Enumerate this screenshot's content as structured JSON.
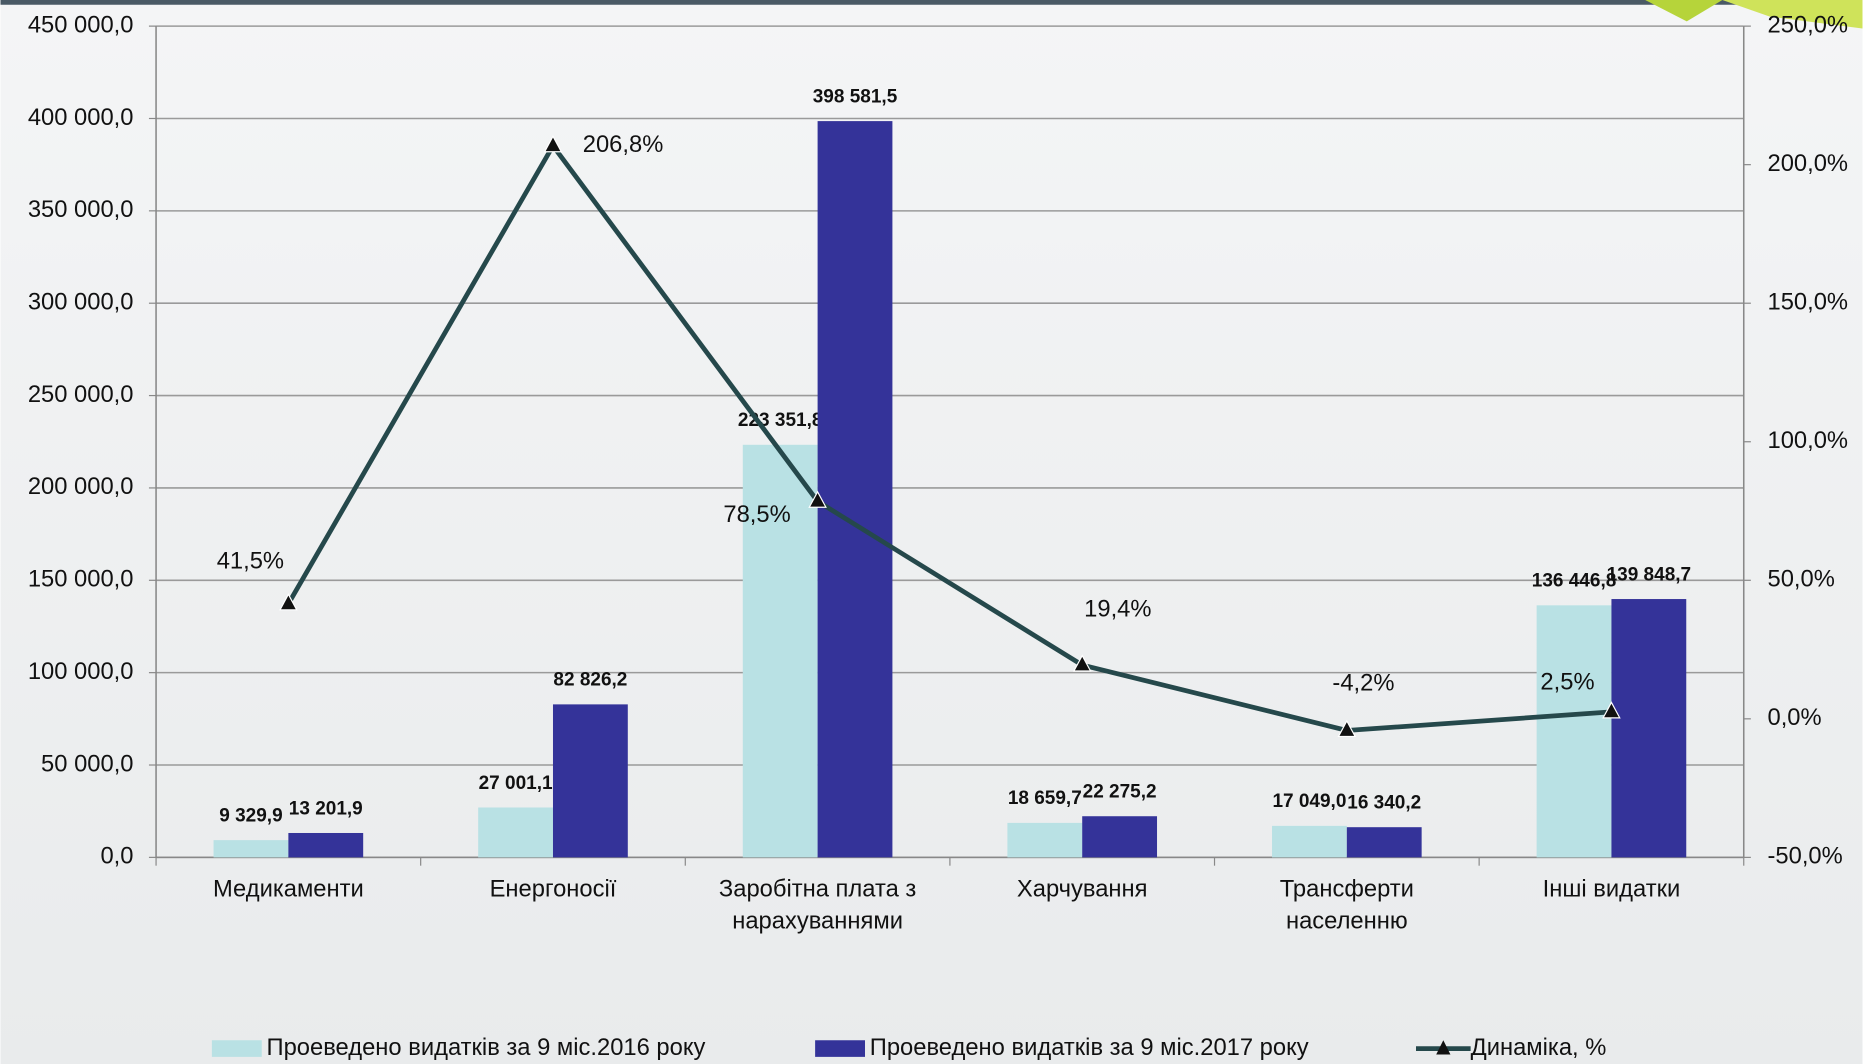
{
  "chart_data": {
    "type": "bar",
    "categories": [
      "Медикаменти",
      "Енергоносії",
      "Заробітна плата з нарахуваннями",
      "Харчування",
      "Трансферти населенню",
      "Інші видатки"
    ],
    "series": [
      {
        "name": "Проеведено видатків за 9 міс.2016 року",
        "color": "#b9e1e4",
        "values": [
          9329.9,
          27001.1,
          223351.8,
          18659.7,
          17049.0,
          136446.8
        ],
        "value_labels": [
          "9 329,9",
          "27 001,1",
          "223 351,8",
          "18 659,7",
          "17 049,0",
          "136 446,8"
        ]
      },
      {
        "name": "Проеведено видатків за 9 міс.2017 року",
        "color": "#343399",
        "values": [
          13201.9,
          82826.2,
          398581.5,
          22275.2,
          16340.2,
          139848.7
        ],
        "value_labels": [
          "13 201,9",
          "82 826,2",
          "398 581,5",
          "22 275,2",
          "16 340,2",
          "139 848,7"
        ]
      },
      {
        "name": "Динаміка, %",
        "color": "#25484b",
        "type": "line",
        "axis": "y2",
        "values": [
          41.5,
          206.8,
          78.5,
          19.4,
          -4.2,
          2.5
        ],
        "value_labels": [
          "41,5%",
          "206,8%",
          "78,5%",
          "19,4%",
          "-4,2%",
          "2,5%"
        ]
      }
    ],
    "ylim": [
      0,
      450000
    ],
    "yticks": [
      {
        "value": 0,
        "label": "0,0"
      },
      {
        "value": 50000,
        "label": "50 000,0"
      },
      {
        "value": 100000,
        "label": "100 000,0"
      },
      {
        "value": 150000,
        "label": "150 000,0"
      },
      {
        "value": 200000,
        "label": "200 000,0"
      },
      {
        "value": 250000,
        "label": "250 000,0"
      },
      {
        "value": 300000,
        "label": "300 000,0"
      },
      {
        "value": 350000,
        "label": "350 000,0"
      },
      {
        "value": 400000,
        "label": "400 000,0"
      },
      {
        "value": 450000,
        "label": "450 000,0"
      }
    ],
    "y2lim": [
      -50,
      250
    ],
    "y2ticks": [
      {
        "value": -50,
        "label": "-50,0%"
      },
      {
        "value": 0,
        "label": "0,0%"
      },
      {
        "value": 50,
        "label": "50,0%"
      },
      {
        "value": 100,
        "label": "100,0%"
      },
      {
        "value": 150,
        "label": "150,0%"
      },
      {
        "value": 200,
        "label": "200,0%"
      },
      {
        "value": 250,
        "label": "250,0%"
      }
    ],
    "grid": true,
    "legend": "bottom"
  }
}
